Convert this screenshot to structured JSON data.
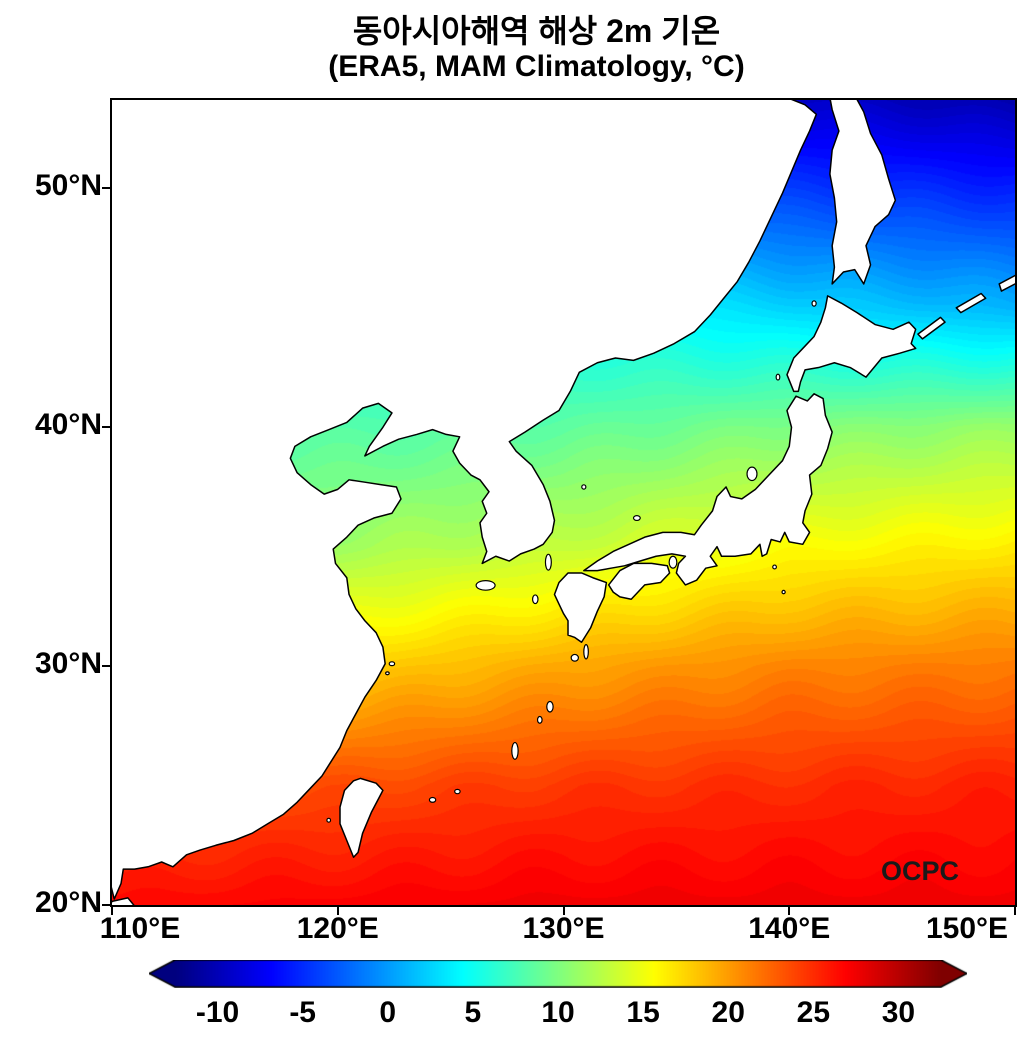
{
  "title": {
    "line1": "동아시아해역 해상 2m 기온",
    "line2": "(ERA5, MAM Climatology, °C)"
  },
  "watermark": "OCPC",
  "axes": {
    "x_tick_labels": [
      "110°E",
      "120°E",
      "130°E",
      "140°E",
      "150°E"
    ],
    "x_tick_lons": [
      110,
      120,
      130,
      140,
      150
    ],
    "y_tick_labels": [
      "50°N",
      "40°N",
      "30°N",
      "20°N"
    ],
    "y_tick_lats": [
      50,
      40,
      30,
      20
    ],
    "lon_range": [
      110,
      150
    ],
    "lat_range": [
      20,
      53.7
    ]
  },
  "colorbar": {
    "tick_values": [
      -10,
      -5,
      0,
      5,
      10,
      15,
      20,
      25,
      30
    ],
    "tick_labels": [
      "-10",
      "-5",
      "0",
      "5",
      "10",
      "15",
      "20",
      "25",
      "30"
    ],
    "range": [
      -12.5,
      32.5
    ],
    "colormap": "jet",
    "stops": [
      [
        0,
        "#00007f"
      ],
      [
        0.125,
        "#0000ff"
      ],
      [
        0.375,
        "#00ffff"
      ],
      [
        0.625,
        "#ffff00"
      ],
      [
        0.875,
        "#ff0000"
      ],
      [
        1,
        "#7f0000"
      ]
    ]
  },
  "chart_data": {
    "type": "heatmap",
    "title": "동아시아해역 해상 2m 기온 (ERA5, MAM Climatology, °C)",
    "variable": "2 m air temperature over ocean, MAM climatology (ERA5)",
    "units": "°C",
    "lons": [
      110,
      120,
      130,
      140,
      150
    ],
    "lats": [
      54,
      50,
      45,
      40,
      35,
      30,
      25,
      20
    ],
    "grid_degC": [
      [
        -4.0,
        -5.0,
        -7.0,
        -9.5,
        -11.0
      ],
      [
        -1.0,
        -2.0,
        -3.0,
        -4.5,
        -5.5
      ],
      [
        3.5,
        4.0,
        4.5,
        2.5,
        1.0
      ],
      [
        7.5,
        8.0,
        8.5,
        10.0,
        11.0
      ],
      [
        11.0,
        11.5,
        13.0,
        15.5,
        16.5
      ],
      [
        16.5,
        17.5,
        19.5,
        21.0,
        21.5
      ],
      [
        23.0,
        23.5,
        24.5,
        25.0,
        25.5
      ],
      [
        26.5,
        27.0,
        27.5,
        27.5,
        27.5
      ]
    ],
    "land_mask": "land shown in white with black coastlines"
  }
}
